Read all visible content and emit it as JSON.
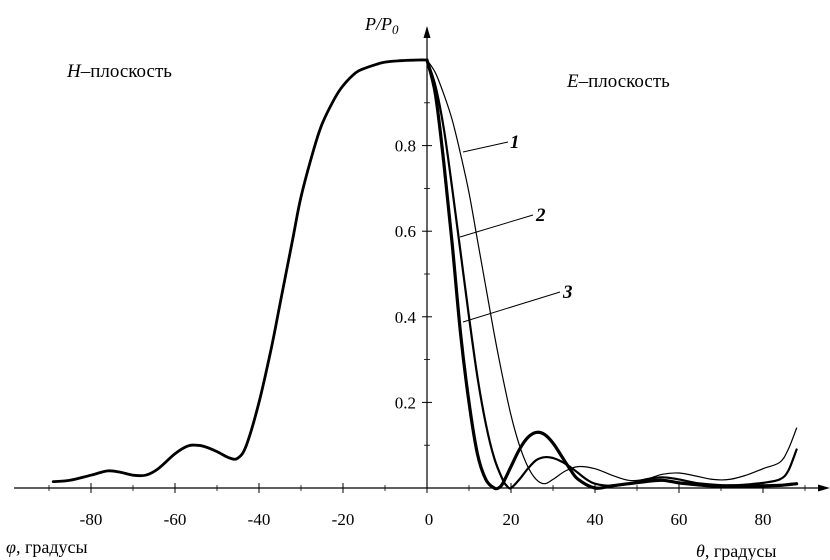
{
  "chart_data": {
    "type": "line",
    "title": "",
    "ylabel": "P/P0",
    "ylabel_parts": {
      "main": "P/P",
      "sub": "0"
    },
    "xlabel_left": {
      "symbol": "φ",
      "text": ", градусы"
    },
    "xlabel_right": {
      "symbol": "θ",
      "text": ", градусы"
    },
    "plane_left": {
      "symbol": "H",
      "text": "–плоскость"
    },
    "plane_right": {
      "symbol": "E",
      "text": "–плоскость"
    },
    "xlim": [
      -95,
      92
    ],
    "ylim": [
      0,
      1.0
    ],
    "x_ticks": [
      "-80",
      "-60",
      "-40",
      "-20",
      "0",
      "20",
      "40",
      "60",
      "80"
    ],
    "y_ticks": [
      "0.2",
      "0.4",
      "0.6",
      "0.8"
    ],
    "grid": false,
    "series": [
      {
        "name": "H-plane",
        "x": [
          -89,
          -85,
          -80,
          -76,
          -73,
          -70,
          -67,
          -64,
          -60,
          -57,
          -55,
          -53,
          -50,
          -47,
          -45,
          -43,
          -40,
          -37,
          -35,
          -32,
          -30,
          -27,
          -25,
          -22,
          -20,
          -17,
          -15,
          -12,
          -10,
          -7,
          -5,
          -2,
          0
        ],
        "y": [
          0.015,
          0.018,
          0.03,
          0.04,
          0.037,
          0.03,
          0.03,
          0.045,
          0.08,
          0.098,
          0.1,
          0.097,
          0.085,
          0.07,
          0.07,
          0.1,
          0.2,
          0.33,
          0.43,
          0.58,
          0.68,
          0.79,
          0.85,
          0.91,
          0.94,
          0.97,
          0.98,
          0.99,
          0.995,
          0.998,
          0.999,
          1.0,
          1.0
        ]
      },
      {
        "name": "1",
        "x": [
          0,
          2,
          4,
          6,
          8,
          10,
          12,
          14,
          16,
          18,
          20,
          22,
          24,
          26,
          28,
          30,
          33,
          36,
          40,
          44,
          48,
          52,
          56,
          60,
          64,
          68,
          72,
          76,
          80,
          84,
          86,
          88
        ],
        "y": [
          1.0,
          0.97,
          0.92,
          0.86,
          0.78,
          0.69,
          0.58,
          0.47,
          0.36,
          0.26,
          0.17,
          0.1,
          0.05,
          0.02,
          0.01,
          0.02,
          0.04,
          0.05,
          0.045,
          0.03,
          0.018,
          0.02,
          0.032,
          0.035,
          0.028,
          0.02,
          0.02,
          0.03,
          0.045,
          0.06,
          0.09,
          0.14
        ]
      },
      {
        "name": "2",
        "x": [
          0,
          2,
          4,
          6,
          8,
          10,
          12,
          14,
          16,
          18,
          19,
          20,
          22,
          24,
          26,
          28,
          30,
          32,
          34,
          36,
          38,
          40,
          44,
          48,
          52,
          56,
          60,
          64,
          68,
          72,
          76,
          80,
          84,
          86,
          88
        ],
        "y": [
          1.0,
          0.94,
          0.84,
          0.7,
          0.55,
          0.4,
          0.26,
          0.15,
          0.07,
          0.02,
          0.005,
          0.0,
          0.02,
          0.045,
          0.065,
          0.072,
          0.07,
          0.062,
          0.05,
          0.035,
          0.02,
          0.01,
          0.005,
          0.01,
          0.02,
          0.025,
          0.02,
          0.012,
          0.008,
          0.006,
          0.008,
          0.012,
          0.02,
          0.04,
          0.09
        ]
      },
      {
        "name": "3",
        "x": [
          0,
          2,
          4,
          6,
          8,
          10,
          12,
          14,
          16,
          17,
          18,
          20,
          22,
          24,
          26,
          28,
          30,
          32,
          34,
          36,
          40,
          44,
          48,
          52,
          56,
          60,
          64,
          68,
          72,
          76,
          80,
          84,
          86,
          88
        ],
        "y": [
          1.0,
          0.92,
          0.76,
          0.57,
          0.36,
          0.2,
          0.08,
          0.02,
          0.0,
          0.0,
          0.01,
          0.05,
          0.09,
          0.118,
          0.13,
          0.125,
          0.105,
          0.075,
          0.045,
          0.02,
          0.0,
          0.005,
          0.01,
          0.015,
          0.018,
          0.012,
          0.008,
          0.005,
          0.005,
          0.005,
          0.005,
          0.006,
          0.008,
          0.01
        ]
      }
    ]
  }
}
